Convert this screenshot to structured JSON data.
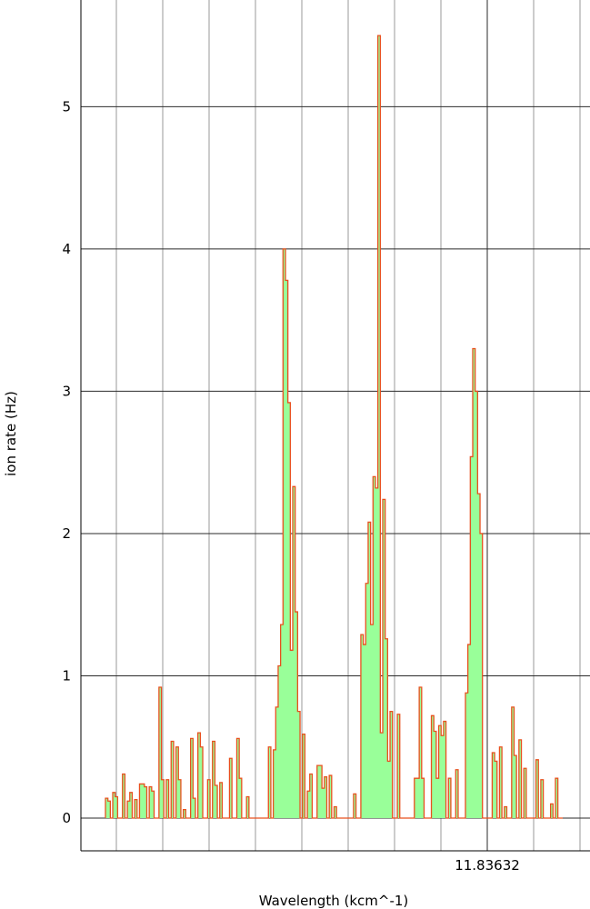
{
  "chart_data": {
    "type": "area",
    "title": "",
    "xlabel": "Wavelength (kcm^-1)",
    "ylabel": "ion rate (Hz)",
    "ylim": [
      -0.23,
      5.75
    ],
    "yticks": [
      0,
      1,
      2,
      3,
      4,
      5
    ],
    "x_marked_tick": "11.83632",
    "grid": true,
    "fill_color": "#99ff99",
    "line_color": "#e8501e",
    "grid_color": "#9a9a9a",
    "major_grid_color": "#2b2b2b",
    "series": [
      {
        "values": [
          0.14,
          0.12,
          0.0,
          0.18,
          0.15,
          0.0,
          0.0,
          0.31,
          0.0,
          0.12,
          0.18,
          0.0,
          0.13,
          0.0,
          0.24,
          0.24,
          0.22,
          0.0,
          0.22,
          0.19,
          0.0,
          0.0,
          0.92,
          0.27,
          0.0,
          0.27,
          0.0,
          0.54,
          0.0,
          0.5,
          0.27,
          0.0,
          0.06,
          0.0,
          0.0,
          0.56,
          0.14,
          0.0,
          0.6,
          0.5,
          0.0,
          0.0,
          0.27,
          0.0,
          0.54,
          0.23,
          0.0,
          0.25,
          0.0,
          0.0,
          0.0,
          0.42,
          0.0,
          0.0,
          0.56,
          0.28,
          0.0,
          0.0,
          0.15,
          0.0,
          0.0,
          0.0,
          0.0,
          0.0,
          0.0,
          0.0,
          0.0,
          0.5,
          0.0,
          0.48,
          0.78,
          1.07,
          1.36,
          4.0,
          3.78,
          2.92,
          1.18,
          2.33,
          1.45,
          0.75,
          0.0,
          0.59,
          0.0,
          0.19,
          0.31,
          0.0,
          0.0,
          0.37,
          0.37,
          0.21,
          0.29,
          0.0,
          0.3,
          0.0,
          0.08,
          0.0,
          0.0,
          0.0,
          0.0,
          0.0,
          0.0,
          0.0,
          0.17,
          0.0,
          0.0,
          1.29,
          1.22,
          1.65,
          2.08,
          1.36,
          2.4,
          2.32,
          5.5,
          0.6,
          2.24,
          1.26,
          0.4,
          0.75,
          0.0,
          0.0,
          0.73,
          0.0,
          0.0,
          0.0,
          0.0,
          0.0,
          0.0,
          0.28,
          0.28,
          0.92,
          0.28,
          0.0,
          0.0,
          0.0,
          0.72,
          0.61,
          0.28,
          0.65,
          0.58,
          0.68,
          0.0,
          0.28,
          0.0,
          0.0,
          0.34,
          0.0,
          0.0,
          0.0,
          0.88,
          1.22,
          2.54,
          3.3,
          3.0,
          2.28,
          2.0,
          0.0,
          0.0,
          0.0,
          0.0,
          0.46,
          0.4,
          0.0,
          0.5,
          0.0,
          0.08,
          0.0,
          0.0,
          0.78,
          0.44,
          0.0,
          0.55,
          0.0,
          0.35,
          0.0,
          0.0,
          0.0,
          0.0,
          0.41,
          0.0,
          0.27,
          0.0,
          0.0,
          0.0,
          0.1,
          0.0,
          0.28,
          0.0,
          0.0
        ]
      }
    ]
  }
}
